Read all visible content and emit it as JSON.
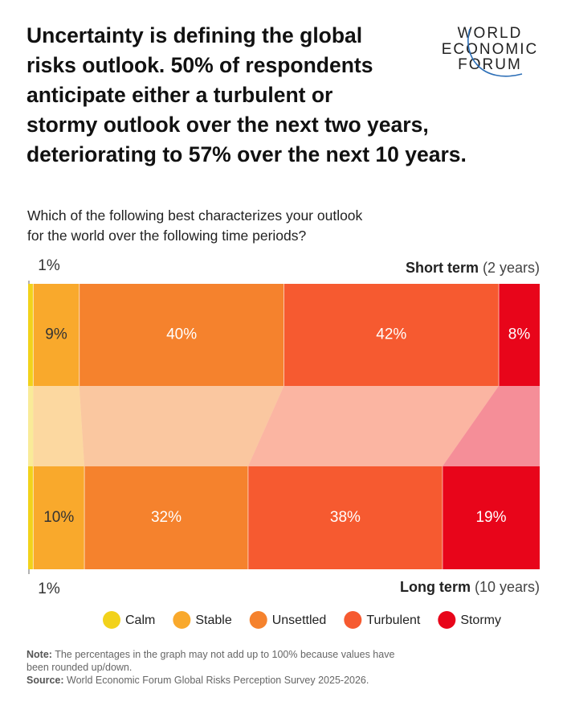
{
  "chart_data": {
    "type": "stacked-bar-flow",
    "title": [
      "Uncertainty is defining the global",
      "risks outlook. 50% of respondents",
      "anticipate either a turbulent or",
      "stormy outlook over the next two years,",
      "deteriorating to 57% over the next 10 years."
    ],
    "logo": [
      "WORLD",
      "ECONOMIC",
      "FORUM"
    ],
    "subtitle": [
      "Which of the following best characterizes your outlook",
      "for the world over the following time periods?"
    ],
    "categories": [
      "Short term",
      "Long term"
    ],
    "category_notes": [
      "(2 years)",
      "(10 years)"
    ],
    "xlim": [
      0,
      100
    ],
    "series": [
      {
        "name": "Calm",
        "color": "#f2d21b",
        "values": [
          1,
          1
        ],
        "value_labels": [
          "1%",
          "1%"
        ]
      },
      {
        "name": "Stable",
        "color": "#f9a92c",
        "values": [
          9,
          10
        ],
        "value_labels": [
          "9%",
          "10%"
        ]
      },
      {
        "name": "Unsettled",
        "color": "#f5822d",
        "values": [
          40,
          32
        ],
        "value_labels": [
          "40%",
          "32%"
        ]
      },
      {
        "name": "Turbulent",
        "color": "#f65a30",
        "values": [
          42,
          38
        ],
        "value_labels": [
          "42%",
          "38%"
        ]
      },
      {
        "name": "Stormy",
        "color": "#e8051a",
        "values": [
          8,
          19
        ],
        "value_labels": [
          "8%",
          "19%"
        ]
      }
    ],
    "note": {
      "label": "Note:",
      "text": "The percentages in the graph may not add up to 100% because values have been rounded up/down."
    },
    "source": {
      "label": "Source:",
      "text": "World Economic Forum Global Risks Perception Survey 2025-2026."
    }
  }
}
